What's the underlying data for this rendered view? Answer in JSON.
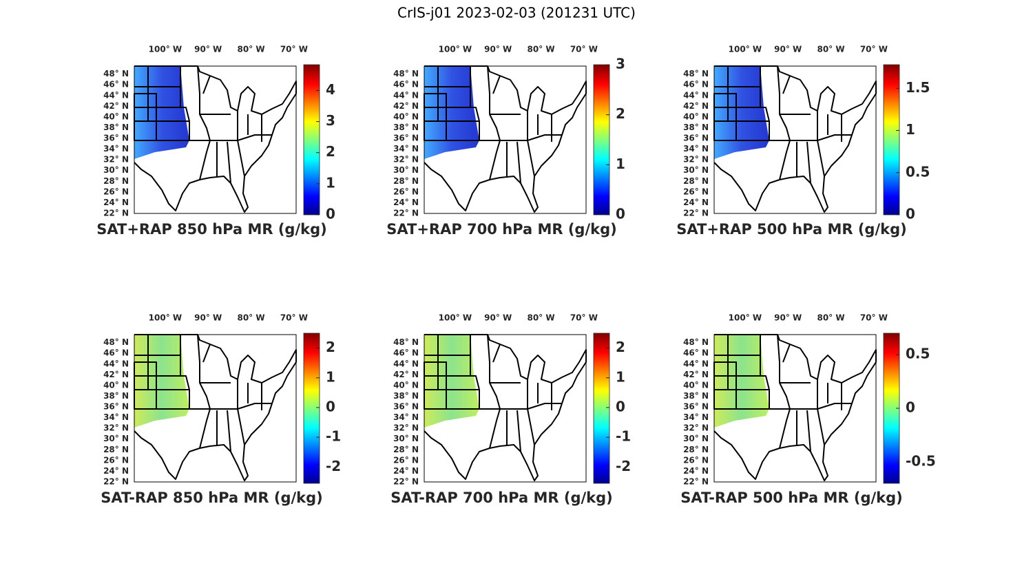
{
  "title": "CrIS-j01 2023-02-03 (201231 UTC)",
  "lonlim": [
    -107.2,
    -69.5
  ],
  "latlim": [
    22,
    49.5
  ],
  "lon_ticks": [
    {
      "value": -100,
      "label": "100° W"
    },
    {
      "value": -90,
      "label": "90° W"
    },
    {
      "value": -80,
      "label": "80° W"
    },
    {
      "value": -70,
      "label": "70° W"
    }
  ],
  "lat_ticks": [
    {
      "value": 22,
      "label": "22° N"
    },
    {
      "value": 24,
      "label": "24° N"
    },
    {
      "value": 26,
      "label": "26° N"
    },
    {
      "value": 28,
      "label": "28° N"
    },
    {
      "value": 30,
      "label": "30° N"
    },
    {
      "value": 32,
      "label": "32° N"
    },
    {
      "value": 34,
      "label": "34° N"
    },
    {
      "value": 36,
      "label": "36° N"
    },
    {
      "value": 38,
      "label": "38° N"
    },
    {
      "value": 40,
      "label": "40° N"
    },
    {
      "value": 42,
      "label": "42° N"
    },
    {
      "value": 44,
      "label": "44° N"
    },
    {
      "value": 46,
      "label": "46° N"
    },
    {
      "value": 48,
      "label": "48° N"
    }
  ],
  "panels": [
    {
      "label": "SAT+RAP 850 hPa MR (g/kg)",
      "clim": [
        0,
        4.83
      ],
      "ticks": [
        0,
        1,
        2,
        3,
        4
      ]
    },
    {
      "label": "SAT+RAP 700 hPa MR (g/kg)",
      "clim": [
        0,
        3
      ],
      "ticks": [
        0,
        1,
        2,
        3
      ]
    },
    {
      "label": "SAT+RAP 500 hPa MR (g/kg)",
      "clim": [
        0,
        1.78
      ],
      "ticks": [
        0,
        0.5,
        1,
        1.5
      ]
    },
    {
      "label": "SAT-RAP 850 hPa MR (g/kg)",
      "clim": [
        -2.55,
        2.5
      ],
      "ticks": [
        -2,
        -1,
        0,
        1,
        2
      ]
    },
    {
      "label": "SAT-RAP 700 hPa MR (g/kg)",
      "clim": [
        -2.55,
        2.5
      ],
      "ticks": [
        -2,
        -1,
        0,
        1,
        2
      ]
    },
    {
      "label": "SAT-RAP 500 hPa MR (g/kg)",
      "clim": [
        -0.7,
        0.7
      ],
      "ticks": [
        -0.5,
        0,
        0.5
      ]
    }
  ]
}
